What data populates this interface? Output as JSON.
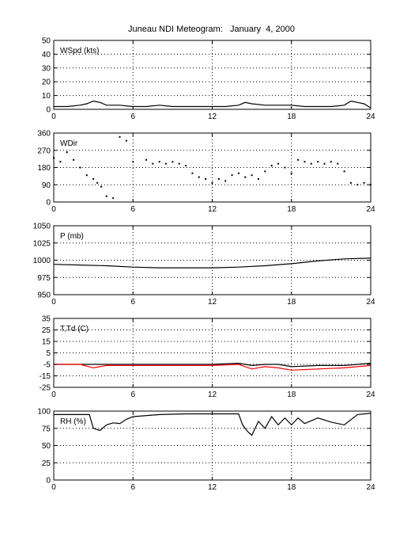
{
  "figure": {
    "title": "Juneau NDI Meteogram:   January  4, 2000"
  },
  "colors": {
    "axes": "#000000",
    "grid": "#000000",
    "series_primary": "#000000",
    "dewpoint": "#ff0000"
  },
  "chart_data": [
    {
      "type": "line",
      "label": "WSpd (kts)",
      "xlim": [
        0,
        24
      ],
      "xticks": [
        0,
        6,
        12,
        18,
        24
      ],
      "ylim": [
        0,
        50
      ],
      "yticks": [
        0,
        10,
        20,
        30,
        40,
        50
      ],
      "grid": true,
      "series": [
        {
          "color": "#000000",
          "x": [
            0,
            1,
            2,
            2.5,
            3,
            3.5,
            4,
            5,
            6,
            7,
            8,
            9,
            10,
            11,
            12,
            13,
            14,
            14.5,
            15,
            16,
            17,
            18,
            19,
            20,
            21,
            22,
            22.5,
            23,
            23.5,
            24
          ],
          "y": [
            2,
            2,
            3,
            4,
            6,
            5,
            3,
            3,
            2,
            2,
            3,
            2,
            2,
            2,
            2,
            2,
            3,
            5,
            4,
            3,
            3,
            3,
            2,
            2,
            2,
            3,
            6,
            5,
            4,
            1
          ]
        }
      ]
    },
    {
      "type": "scatter",
      "label": "WDir",
      "xlim": [
        0,
        24
      ],
      "xticks": [
        0,
        6,
        12,
        18,
        24
      ],
      "ylim": [
        0,
        360
      ],
      "yticks": [
        0,
        90,
        180,
        270,
        360
      ],
      "grid": true,
      "series": [
        {
          "color": "#000000",
          "x": [
            0,
            0.5,
            1,
            1.5,
            2,
            2.5,
            3,
            3.3,
            3.6,
            4,
            4.5,
            5,
            5.5,
            6,
            7,
            7.5,
            8,
            8.5,
            9,
            9.5,
            10,
            10.5,
            11,
            11.5,
            12,
            12.5,
            13,
            13.5,
            14,
            14.5,
            15,
            15.5,
            16,
            16.5,
            17,
            17.5,
            18,
            18.5,
            19,
            19.5,
            20,
            20.5,
            21,
            21.5,
            22,
            22.5,
            23,
            23.5,
            24
          ],
          "y": [
            230,
            210,
            260,
            220,
            180,
            140,
            120,
            100,
            80,
            30,
            20,
            340,
            320,
            210,
            220,
            200,
            210,
            200,
            210,
            200,
            190,
            150,
            130,
            120,
            100,
            120,
            110,
            140,
            150,
            130,
            140,
            120,
            160,
            190,
            200,
            180,
            150,
            220,
            210,
            200,
            210,
            200,
            210,
            200,
            160,
            100,
            90,
            100,
            90
          ]
        }
      ]
    },
    {
      "type": "line",
      "label": "P (mb)",
      "xlim": [
        0,
        24
      ],
      "xticks": [
        0,
        6,
        12,
        18,
        24
      ],
      "ylim": [
        950,
        1050
      ],
      "yticks": [
        950,
        975,
        1000,
        1025,
        1050
      ],
      "grid": true,
      "series": [
        {
          "color": "#000000",
          "x": [
            0,
            2,
            4,
            6,
            8,
            10,
            12,
            14,
            16,
            18,
            20,
            22,
            24
          ],
          "y": [
            994,
            993,
            992,
            990,
            989,
            989,
            989,
            990,
            992,
            995,
            999,
            1002,
            1003
          ]
        }
      ]
    },
    {
      "type": "line",
      "label": "T,Td (C)",
      "xlim": [
        0,
        24
      ],
      "xticks": [
        0,
        6,
        12,
        18,
        24
      ],
      "ylim": [
        -25,
        35
      ],
      "yticks": [
        -25,
        -15,
        -5,
        5,
        15,
        25,
        35
      ],
      "grid": true,
      "series": [
        {
          "color": "#000000",
          "x": [
            0,
            2,
            3,
            6,
            9,
            12,
            14,
            15,
            16,
            17,
            18,
            20,
            22,
            24
          ],
          "y": [
            -5,
            -5,
            -5,
            -5,
            -5,
            -5,
            -4,
            -6,
            -5,
            -5,
            -7,
            -6,
            -6,
            -4
          ]
        },
        {
          "color": "#ff0000",
          "x": [
            0,
            2,
            3,
            3.5,
            4,
            6,
            9,
            12,
            14,
            15,
            16,
            17,
            18,
            20,
            22,
            24
          ],
          "y": [
            -5,
            -5,
            -8,
            -7,
            -6,
            -6,
            -6,
            -6,
            -5,
            -9,
            -7,
            -8,
            -10,
            -9,
            -8,
            -6
          ]
        }
      ]
    },
    {
      "type": "line",
      "label": "RH (%)",
      "xlim": [
        0,
        24
      ],
      "xticks": [
        0,
        6,
        12,
        18,
        24
      ],
      "ylim": [
        0,
        100
      ],
      "yticks": [
        0,
        25,
        50,
        75,
        100
      ],
      "grid": true,
      "series": [
        {
          "color": "#000000",
          "x": [
            0,
            1,
            2,
            2.7,
            3,
            3.5,
            4,
            4.5,
            5,
            5.5,
            6,
            8,
            10,
            12,
            14,
            14.3,
            14.7,
            15,
            15.5,
            16,
            16.5,
            17,
            17.5,
            18,
            18.5,
            19,
            20,
            21,
            22,
            23,
            24
          ],
          "y": [
            95,
            95,
            95,
            95,
            75,
            72,
            80,
            83,
            82,
            88,
            92,
            95,
            96,
            96,
            96,
            80,
            70,
            65,
            85,
            75,
            92,
            80,
            90,
            80,
            90,
            82,
            90,
            84,
            80,
            95,
            97
          ]
        }
      ]
    }
  ]
}
